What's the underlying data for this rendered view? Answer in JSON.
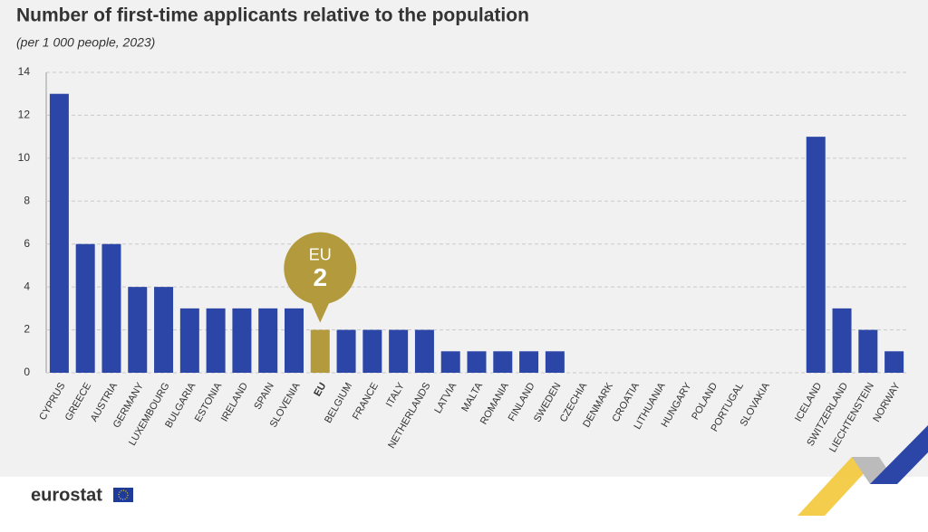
{
  "chart_data": {
    "type": "bar",
    "title": "Number of first-time applicants relative to the population",
    "subtitle": "(per 1 000 people, 2023)",
    "categories": [
      "CYPRUS",
      "GREECE",
      "AUSTRIA",
      "GERMANY",
      "LUXEMBOURG",
      "BULGARIA",
      "ESTONIA",
      "IRELAND",
      "SPAIN",
      "SLOVENIA",
      "EU",
      "BELGIUM",
      "FRANCE",
      "ITALY",
      "NETHERLANDS",
      "LATVIA",
      "MALTA",
      "ROMANIA",
      "FINLAND",
      "SWEDEN",
      "CZECHIA",
      "DENMARK",
      "CROATIA",
      "LITHUANIA",
      "HUNGARY",
      "POLAND",
      "PORTUGAL",
      "SLOVAKIA",
      null,
      "ICELAND",
      "SWITZERLAND",
      "LIECHTENSTEIN",
      "NORWAY"
    ],
    "values": [
      13,
      6,
      6,
      4,
      4,
      3,
      3,
      3,
      3,
      3,
      2,
      2,
      2,
      2,
      2,
      1,
      1,
      1,
      1,
      1,
      0,
      0,
      0,
      0,
      0,
      0,
      0,
      0,
      null,
      11,
      3,
      2,
      1
    ],
    "color": "#2b46a6",
    "highlight": {
      "category": "EU",
      "color": "#b39a3c"
    },
    "ylim": [
      0,
      14
    ],
    "yticks": [
      0,
      2,
      4,
      6,
      8,
      10,
      12,
      14
    ],
    "grid": true
  },
  "brand": "eurostat"
}
